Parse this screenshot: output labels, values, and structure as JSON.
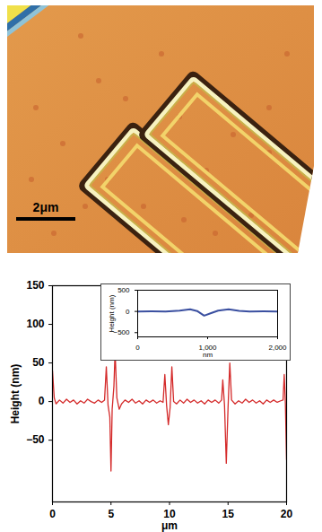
{
  "afm_image": {
    "scale_bar": "2μm"
  },
  "chart_data": [
    {
      "type": "line",
      "x_label": "μm",
      "y_label": "Height (nm)",
      "color": "#d42a2a",
      "xlim": [
        0,
        20
      ],
      "xticks": [
        0,
        5,
        10,
        15,
        20
      ],
      "ylim": [
        -130,
        150
      ],
      "yticks": [
        -50,
        0,
        50,
        100,
        150
      ],
      "x": [
        0,
        0.15,
        0.3,
        0.6,
        0.9,
        1.2,
        1.5,
        1.8,
        2.1,
        2.4,
        2.7,
        3.0,
        3.3,
        3.6,
        3.9,
        4.2,
        4.45,
        4.6,
        4.75,
        4.9,
        5.0,
        5.1,
        5.25,
        5.35,
        5.5,
        5.7,
        5.9,
        6.2,
        6.5,
        6.8,
        7.1,
        7.4,
        7.7,
        8.0,
        8.3,
        8.6,
        8.9,
        9.2,
        9.45,
        9.6,
        9.75,
        9.9,
        10.05,
        10.2,
        10.35,
        10.6,
        10.9,
        11.2,
        11.5,
        11.8,
        12.1,
        12.4,
        12.7,
        13.0,
        13.3,
        13.6,
        13.9,
        14.2,
        14.45,
        14.55,
        14.7,
        14.85,
        15.0,
        15.15,
        15.3,
        15.6,
        15.9,
        16.2,
        16.5,
        16.8,
        17.1,
        17.4,
        17.7,
        18.0,
        18.3,
        18.6,
        18.9,
        19.2,
        19.5,
        19.7,
        19.8,
        19.9,
        20
      ],
      "values": [
        40,
        5,
        -3,
        2,
        -2,
        3,
        -1,
        2,
        -3,
        1,
        -2,
        3,
        0,
        -2,
        2,
        -1,
        2,
        45,
        -5,
        -20,
        -90,
        -10,
        20,
        65,
        5,
        -10,
        -3,
        2,
        -1,
        3,
        -2,
        1,
        -3,
        2,
        -1,
        2,
        -2,
        1,
        -1,
        35,
        -5,
        -30,
        -8,
        45,
        0,
        -3,
        2,
        -2,
        3,
        -1,
        2,
        -2,
        1,
        -3,
        2,
        -1,
        2,
        -2,
        2,
        28,
        -5,
        -80,
        -8,
        50,
        2,
        -3,
        1,
        -2,
        3,
        -1,
        2,
        -2,
        1,
        -3,
        2,
        -1,
        2,
        -1,
        1,
        2,
        35,
        -3,
        -75
      ]
    },
    {
      "type": "line",
      "x_label": "nm",
      "y_label": "Height (nm)",
      "color": "#3a4fa0",
      "xlim": [
        0,
        2000
      ],
      "xticks": [
        0,
        1000,
        2000
      ],
      "ylim": [
        -600,
        500
      ],
      "yticks": [
        -500,
        0,
        500
      ],
      "x": [
        0,
        200,
        400,
        600,
        750,
        850,
        950,
        1050,
        1150,
        1300,
        1450,
        1600,
        1800,
        2000
      ],
      "values": [
        0,
        2,
        0,
        20,
        50,
        10,
        -100,
        -40,
        20,
        50,
        15,
        0,
        2,
        0
      ]
    }
  ]
}
